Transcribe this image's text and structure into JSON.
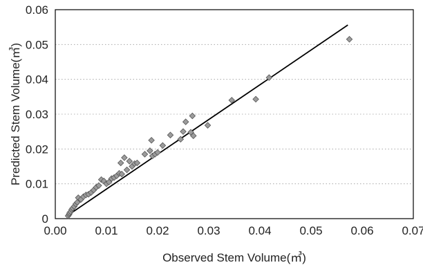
{
  "chart_data": {
    "type": "scatter",
    "xlabel": "Observed Stem Volume(㎥)",
    "ylabel": "Predicted Stem Volume(㎥)",
    "xlim": [
      0,
      0.07
    ],
    "ylim": [
      0,
      0.06
    ],
    "x_ticks": [
      0,
      0.01,
      0.02,
      0.03,
      0.04,
      0.05,
      0.06,
      0.07
    ],
    "x_tick_labels": [
      "0.00",
      "0.01",
      "0.02",
      "0.03",
      "0.04",
      "0.05",
      "0.06",
      "0.07"
    ],
    "y_ticks": [
      0,
      0.01,
      0.02,
      0.03,
      0.04,
      0.05,
      0.06
    ],
    "y_tick_labels": [
      "0",
      "0.01",
      "0.02",
      "0.03",
      "0.04",
      "0.05",
      "0.06"
    ],
    "grid": "horizontal-dotted",
    "legend": "none",
    "marker": "diamond",
    "colors": {
      "point_fill": "#9c9c9c",
      "point_edge": "#555555",
      "line": "#000000"
    },
    "series": [
      {
        "points": [
          [
            0.0025,
            0.0008
          ],
          [
            0.0027,
            0.0012
          ],
          [
            0.0028,
            0.0016
          ],
          [
            0.003,
            0.002
          ],
          [
            0.0032,
            0.0026
          ],
          [
            0.0034,
            0.003
          ],
          [
            0.0037,
            0.0035
          ],
          [
            0.004,
            0.0042
          ],
          [
            0.0043,
            0.0047
          ],
          [
            0.0045,
            0.006
          ],
          [
            0.005,
            0.0055
          ],
          [
            0.0055,
            0.0063
          ],
          [
            0.006,
            0.0068
          ],
          [
            0.0065,
            0.007
          ],
          [
            0.007,
            0.0075
          ],
          [
            0.0075,
            0.0082
          ],
          [
            0.008,
            0.009
          ],
          [
            0.0085,
            0.0095
          ],
          [
            0.009,
            0.0112
          ],
          [
            0.0095,
            0.0108
          ],
          [
            0.01,
            0.01
          ],
          [
            0.0105,
            0.0105
          ],
          [
            0.011,
            0.0115
          ],
          [
            0.0115,
            0.0118
          ],
          [
            0.012,
            0.0123
          ],
          [
            0.0125,
            0.013
          ],
          [
            0.013,
            0.0128
          ],
          [
            0.0128,
            0.016
          ],
          [
            0.0135,
            0.0175
          ],
          [
            0.014,
            0.014
          ],
          [
            0.0145,
            0.0165
          ],
          [
            0.015,
            0.015
          ],
          [
            0.0155,
            0.0158
          ],
          [
            0.016,
            0.016
          ],
          [
            0.0175,
            0.0185
          ],
          [
            0.0185,
            0.0195
          ],
          [
            0.0188,
            0.0225
          ],
          [
            0.019,
            0.018
          ],
          [
            0.0195,
            0.0185
          ],
          [
            0.02,
            0.019
          ],
          [
            0.021,
            0.021
          ],
          [
            0.0225,
            0.024
          ],
          [
            0.0245,
            0.0228
          ],
          [
            0.025,
            0.025
          ],
          [
            0.0255,
            0.0278
          ],
          [
            0.0265,
            0.0248
          ],
          [
            0.0268,
            0.0295
          ],
          [
            0.027,
            0.0238
          ],
          [
            0.0298,
            0.0268
          ],
          [
            0.0345,
            0.034
          ],
          [
            0.0392,
            0.0343
          ],
          [
            0.0418,
            0.0405
          ],
          [
            0.0575,
            0.0515
          ]
        ]
      }
    ],
    "fit_line": {
      "x": [
        0.0025,
        0.0572
      ],
      "y": [
        0.001,
        0.0556
      ]
    }
  }
}
